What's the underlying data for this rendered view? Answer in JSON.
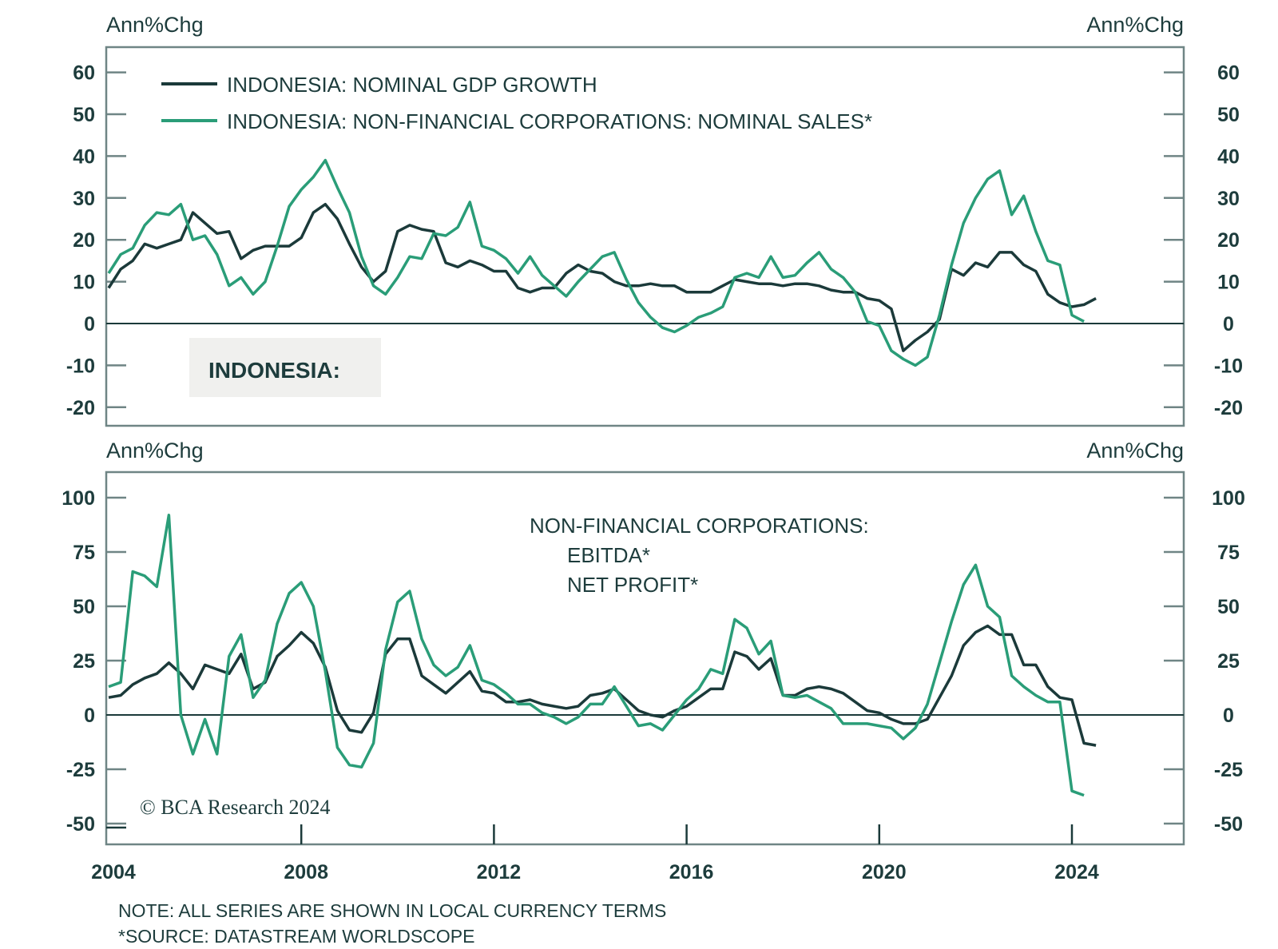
{
  "chart_data": [
    {
      "type": "line",
      "title": "INDONESIA:",
      "ylabel_left": "Ann%Chg",
      "ylabel_right": "Ann%Chg",
      "ylim": [
        -25,
        65
      ],
      "yticks": [
        -20,
        -10,
        0,
        10,
        20,
        30,
        40,
        50,
        60
      ],
      "ytick_labels": [
        "-20",
        "-10",
        "0",
        "10",
        "20",
        "30",
        "40",
        "50",
        "60"
      ],
      "legend_position": "top-left",
      "x_start": 2004.0,
      "x_step": 0.25,
      "series": [
        {
          "name": "INDONESIA: NOMINAL GDP GROWTH",
          "color": "#1b3a3a",
          "values": [
            8.5,
            13,
            15,
            19,
            18,
            19,
            20,
            26.5,
            24,
            21.5,
            22,
            15.5,
            17.5,
            18.5,
            18.5,
            18.5,
            20.5,
            26.5,
            28.5,
            25,
            19,
            13.5,
            10,
            12.5,
            22,
            23.5,
            22.5,
            22,
            14.5,
            13.5,
            15,
            14,
            12.5,
            12.5,
            8.5,
            7.5,
            8.5,
            8.5,
            12,
            14,
            12.5,
            12,
            10,
            9,
            9,
            9.5,
            9,
            9,
            7.5,
            7.5,
            7.5,
            9,
            10.5,
            10,
            9.5,
            9.5,
            9,
            9.5,
            9.5,
            9,
            8,
            7.5,
            7.5,
            6,
            5.5,
            3.5,
            -6.5,
            -4,
            -2,
            1,
            13,
            11.5,
            14.5,
            13.5,
            17,
            17,
            14,
            12.5,
            7,
            5,
            4,
            4.5,
            6
          ]
        },
        {
          "name": "INDONESIA: NON-FINANCIAL CORPORATIONS: NOMINAL SALES*",
          "color": "#2a9d78",
          "values": [
            12,
            16.5,
            18,
            23.5,
            26.5,
            26,
            28.5,
            20,
            21,
            16.5,
            9,
            11,
            7,
            10,
            18.5,
            28,
            32,
            35,
            39,
            32.5,
            26.5,
            16,
            9,
            7,
            11,
            16,
            15.5,
            21.5,
            21,
            23,
            29,
            18.5,
            17.5,
            15.5,
            12,
            16,
            11.5,
            9,
            6.5,
            10,
            13,
            16,
            17,
            10.5,
            5,
            1.5,
            -1,
            -2,
            -0.5,
            1.5,
            2.5,
            4,
            11,
            12,
            11,
            16,
            11,
            11.5,
            14.5,
            17,
            13,
            11,
            7.5,
            0.5,
            -0.5,
            -6.5,
            -8.5,
            -10,
            -8,
            2,
            14,
            24,
            30,
            34.5,
            36.5,
            26,
            30.5,
            22,
            15,
            14,
            2,
            0.5
          ]
        }
      ]
    },
    {
      "type": "line",
      "title": "NON-FINANCIAL CORPORATIONS:",
      "ylabel_left": "Ann%Chg",
      "ylabel_right": "Ann%Chg",
      "ylim": [
        -57,
        106
      ],
      "yticks": [
        -50,
        -25,
        0,
        25,
        50,
        75,
        100
      ],
      "ytick_labels": [
        "-50",
        "-25",
        "0",
        "25",
        "50",
        "75",
        "100"
      ],
      "legend_position": "top-center",
      "x_start": 2004.0,
      "x_step": 0.25,
      "series": [
        {
          "name": "EBITDA*",
          "color": "#1b3a3a",
          "values": [
            8,
            9,
            14,
            17,
            19,
            24,
            19,
            12,
            23,
            21,
            19,
            28,
            12,
            15,
            27,
            32,
            38,
            33,
            22,
            2,
            -7,
            -8,
            1,
            28,
            35,
            35,
            18,
            14,
            10,
            15,
            20,
            11,
            10,
            6,
            6,
            7,
            5,
            4,
            3,
            4,
            9,
            10,
            12,
            7,
            2,
            0,
            -1,
            2,
            4,
            8,
            12,
            12,
            29,
            27,
            21,
            26,
            9,
            9,
            12,
            13,
            12,
            10,
            6,
            2,
            1,
            -2,
            -4,
            -4,
            -2,
            8,
            18,
            32,
            38,
            41,
            37,
            37,
            23,
            23,
            13,
            8,
            7,
            -13,
            -14
          ]
        },
        {
          "name": "NET PROFIT*",
          "color": "#2a9d78",
          "values": [
            13,
            15,
            66,
            64,
            59,
            92,
            0,
            -18,
            -2,
            -18,
            27,
            37,
            8,
            16,
            42,
            56,
            61,
            50,
            20,
            -15,
            -23,
            -24,
            -13,
            30,
            52,
            57,
            35,
            23,
            18,
            22,
            32,
            16,
            14,
            10,
            5,
            5,
            1,
            -1,
            -4,
            -1,
            5,
            5,
            13,
            4,
            -5,
            -4,
            -7,
            0,
            7,
            12,
            21,
            19,
            44,
            40,
            28,
            34,
            9,
            8,
            9,
            6,
            3,
            -4,
            -4,
            -4,
            -5,
            -6,
            -11,
            -6,
            5,
            24,
            43,
            60,
            69,
            50,
            45,
            18,
            13,
            9,
            6,
            6,
            -35,
            -37
          ]
        }
      ]
    }
  ],
  "x_axis": {
    "ticks": [
      2004,
      2008,
      2012,
      2016,
      2020,
      2024
    ],
    "tick_labels": [
      "2004",
      "2008",
      "2012",
      "2016",
      "2020",
      "2024"
    ],
    "xlim": [
      2004,
      2025.7
    ]
  },
  "top_panel": {
    "unit_left": "Ann%Chg",
    "unit_right": "Ann%Chg",
    "legend": [
      {
        "label": "INDONESIA: NOMINAL GDP GROWTH",
        "color": "#1b3a3a"
      },
      {
        "label": "INDONESIA: NON-FINANCIAL CORPORATIONS: NOMINAL SALES*",
        "color": "#2a9d78"
      }
    ],
    "region_label": "INDONESIA:"
  },
  "bottom_panel": {
    "unit_left": "Ann%Chg",
    "unit_right": "Ann%Chg",
    "legend_title": "NON-FINANCIAL CORPORATIONS:",
    "legend": [
      {
        "label": "EBITDA*",
        "color": "#1b3a3a"
      },
      {
        "label": "NET PROFIT*",
        "color": "#2a9d78"
      }
    ],
    "copyright": "© BCA Research 2024"
  },
  "footnotes": {
    "note": "NOTE: ALL SERIES ARE SHOWN IN LOCAL CURRENCY TERMS",
    "source": "*SOURCE: DATASTREAM WORLDSCOPE"
  }
}
